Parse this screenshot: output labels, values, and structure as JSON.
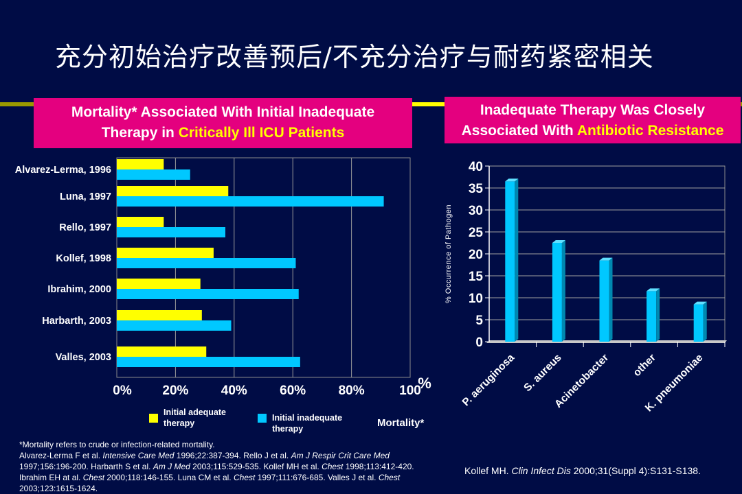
{
  "title": "充分初始治疗改善预后/不充分治疗与耐药紧密相关",
  "left_box": {
    "line1": "Mortality* Associated With Initial Inadequate",
    "line2_prefix": "Therapy in ",
    "line2_highlight": "Critically Ill ICU Patients"
  },
  "right_box": {
    "line1": "Inadequate Therapy Was Closely",
    "line2_prefix": "Associated With ",
    "line2_highlight": "Antibiotic Resistance"
  },
  "legend": {
    "adequate": "Initial adequate therapy",
    "inadequate": "Initial inadequate therapy",
    "mortality_label": "Mortality*"
  },
  "footnote": "*Mortality refers to crude or infection-related mortality.",
  "references": [
    {
      "t": "Alvarez-Lerma F et al. ",
      "i": false
    },
    {
      "t": "Intensive Care Med",
      "i": true
    },
    {
      "t": " 1996;22:387-394. Rello J et al. ",
      "i": false
    },
    {
      "t": "Am J Respir Crit Care Med",
      "i": true
    },
    {
      "t": " 1997;156:196-200. Harbarth S et al. ",
      "i": false
    },
    {
      "t": "Am J Med",
      "i": true
    },
    {
      "t": " 2003;115:529-535. Kollef MH et al. ",
      "i": false
    },
    {
      "t": "Chest",
      "i": true
    },
    {
      "t": " 1998;113:412-420. Ibrahim EH at al. ",
      "i": false
    },
    {
      "t": "Chest",
      "i": true
    },
    {
      "t": " 2000;118:146-155. Luna CM et al. ",
      "i": false
    },
    {
      "t": "Chest",
      "i": true
    },
    {
      "t": " 1997;111:676-685. Valles J et al. ",
      "i": false
    },
    {
      "t": "Chest",
      "i": true
    },
    {
      "t": " 2003;123:1615-1624.",
      "i": false
    }
  ],
  "citation": {
    "prefix": "Kollef MH. ",
    "journal": "Clin Infect Dis",
    "suffix": " 2000;31(Suppl 4):S131-S138."
  },
  "colors": {
    "background": "#000c45",
    "box": "#e4007f",
    "adequate": "#ffff00",
    "inadequate": "#00c8ff",
    "highlight": "#ffff00"
  },
  "chart_data": [
    {
      "type": "bar",
      "orientation": "horizontal",
      "categories": [
        "Alvarez-Lerma, 1996",
        "Luna, 1997",
        "Rello, 1997",
        "Kollef, 1998",
        "Ibrahim, 2000",
        "Harbarth, 2003",
        "Valles, 2003"
      ],
      "series": [
        {
          "name": "Initial adequate therapy",
          "values": [
            16,
            38,
            16,
            33,
            28.5,
            29,
            30.5
          ]
        },
        {
          "name": "Initial inadequate therapy",
          "values": [
            25,
            91,
            37,
            61,
            62,
            39,
            62.5
          ]
        }
      ],
      "tick_labels": [
        "0%",
        "20%",
        "40%",
        "60%",
        "80%",
        "100"
      ],
      "unit_label": "%",
      "xlim": [
        0,
        100
      ],
      "grid": true
    },
    {
      "type": "bar",
      "categories": [
        "P. aeruginosa",
        "S. aureus",
        "Acinetobacter",
        "other",
        "K. pneumoniae"
      ],
      "values": [
        36.5,
        22.5,
        18.5,
        11.5,
        8.5
      ],
      "ylabel": "% Occurrence of Pathogen",
      "ylim": [
        0,
        40
      ],
      "yticks": [
        0,
        5,
        10,
        15,
        20,
        25,
        30,
        35,
        40
      ],
      "grid": true
    }
  ]
}
